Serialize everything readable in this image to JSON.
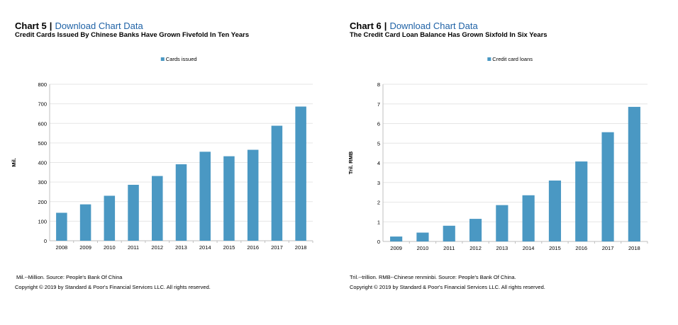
{
  "colors": {
    "bar": "#4a98c3",
    "link": "#1f62a6",
    "grid": "#e6e6e6",
    "axis": "#bfbfbf"
  },
  "charts": [
    {
      "label": "Chart 5",
      "separator": "|",
      "download_label": "Download Chart Data",
      "footnote": "Mil.--Million.  Source: People's Bank Of China",
      "copyright": "Copyright © 2019 by Standard & Poor's Financial Services LLC. All rights reserved."
    },
    {
      "label": "Chart 6",
      "separator": "|",
      "download_label": "Download Chart Data",
      "footnote": "Tril.--trillion.  RMB--Chinese renminbi.  Source: People's Bank Of China.",
      "copyright": "Copyright © 2019 by Standard & Poor's Financial Services LLC. All rights reserved."
    }
  ],
  "chart_data": [
    {
      "type": "bar",
      "title": "Credit Cards Issued By Chinese Banks Have Grown Fivefold In Ten Years",
      "xlabel": "",
      "ylabel": "Mil.",
      "ylim": [
        0,
        800
      ],
      "yticks": [
        "0",
        "100",
        "200",
        "300",
        "400",
        "500",
        "600",
        "700",
        "800"
      ],
      "grid": true,
      "legend_position": "top-center",
      "categories": [
        "2008",
        "2009",
        "2010",
        "2011",
        "2012",
        "2013",
        "2014",
        "2015",
        "2016",
        "2017",
        "2018"
      ],
      "series": [
        {
          "name": "Cards issued",
          "values": [
            143,
            186,
            230,
            286,
            331,
            391,
            455,
            432,
            465,
            588,
            686
          ]
        }
      ]
    },
    {
      "type": "bar",
      "title": "The Credit Card Loan Balance Has Grown Sixfold In Six Years",
      "xlabel": "",
      "ylabel": "Tril. RMB",
      "ylim": [
        0,
        8
      ],
      "yticks": [
        "0",
        "1",
        "2",
        "3",
        "4",
        "5",
        "6",
        "7",
        "8"
      ],
      "grid": true,
      "legend_position": "top-center",
      "categories": [
        "2009",
        "2010",
        "2011",
        "2012",
        "2013",
        "2014",
        "2015",
        "2016",
        "2017",
        "2018"
      ],
      "series": [
        {
          "name": "Credit card loans",
          "values": [
            0.25,
            0.45,
            0.8,
            1.15,
            1.85,
            2.35,
            3.1,
            4.07,
            5.56,
            6.85
          ]
        }
      ]
    }
  ]
}
